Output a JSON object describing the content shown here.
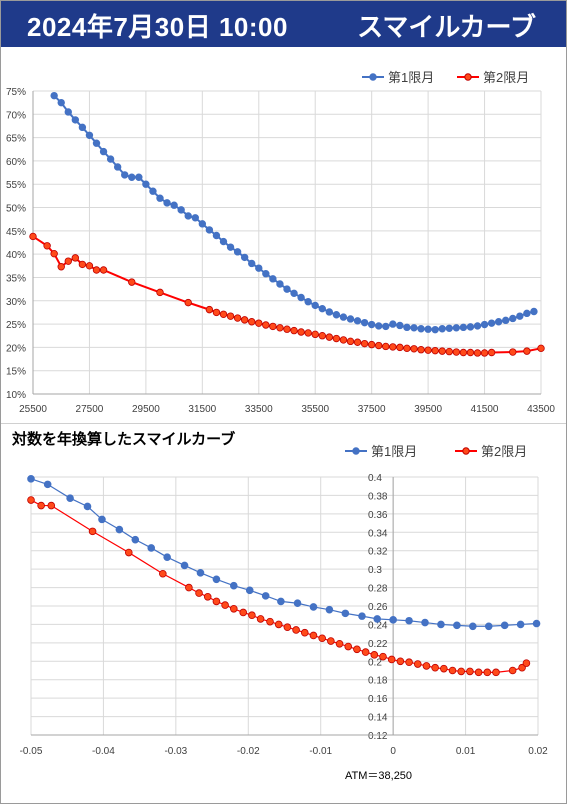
{
  "header": {
    "datetime": "2024年7月30日 10:00",
    "title": "スマイルカーブ",
    "background": "#1f3a8a"
  },
  "colors": {
    "series1": "#4472c4",
    "series2": "#ff0000",
    "marker2_fill": "#ff4a1a"
  },
  "chart_data": [
    {
      "type": "line",
      "title": "",
      "legend_placement": "top-right",
      "x_ticks": [
        "25500",
        "27500",
        "29500",
        "31500",
        "33500",
        "35500",
        "37500",
        "39500",
        "41500",
        "43500"
      ],
      "y_ticks": [
        "10%",
        "15%",
        "20%",
        "25%",
        "30%",
        "35%",
        "40%",
        "45%",
        "50%",
        "55%",
        "60%",
        "65%",
        "70%",
        "75%"
      ],
      "xlim": [
        25500,
        43500
      ],
      "ylim": [
        0.1,
        0.75
      ],
      "grid": true,
      "series": [
        {
          "name": "第1限月",
          "color": "#4472c4",
          "points": [
            [
              26250,
              0.74
            ],
            [
              26500,
              0.725
            ],
            [
              26750,
              0.705
            ],
            [
              27000,
              0.688
            ],
            [
              27250,
              0.672
            ],
            [
              27500,
              0.655
            ],
            [
              27750,
              0.638
            ],
            [
              28000,
              0.62
            ],
            [
              28250,
              0.604
            ],
            [
              28500,
              0.587
            ],
            [
              28750,
              0.57
            ],
            [
              29000,
              0.565
            ],
            [
              29250,
              0.565
            ],
            [
              29500,
              0.55
            ],
            [
              29750,
              0.535
            ],
            [
              30000,
              0.52
            ],
            [
              30250,
              0.51
            ],
            [
              30500,
              0.505
            ],
            [
              30750,
              0.495
            ],
            [
              31000,
              0.482
            ],
            [
              31250,
              0.478
            ],
            [
              31500,
              0.465
            ],
            [
              31750,
              0.452
            ],
            [
              32000,
              0.44
            ],
            [
              32250,
              0.427
            ],
            [
              32500,
              0.415
            ],
            [
              32750,
              0.405
            ],
            [
              33000,
              0.393
            ],
            [
              33250,
              0.38
            ],
            [
              33500,
              0.37
            ],
            [
              33750,
              0.358
            ],
            [
              34000,
              0.347
            ],
            [
              34250,
              0.336
            ],
            [
              34500,
              0.325
            ],
            [
              34750,
              0.316
            ],
            [
              35000,
              0.307
            ],
            [
              35250,
              0.298
            ],
            [
              35500,
              0.29
            ],
            [
              35750,
              0.283
            ],
            [
              36000,
              0.276
            ],
            [
              36250,
              0.27
            ],
            [
              36500,
              0.265
            ],
            [
              36750,
              0.261
            ],
            [
              37000,
              0.257
            ],
            [
              37250,
              0.253
            ],
            [
              37500,
              0.249
            ],
            [
              37750,
              0.246
            ],
            [
              38000,
              0.245
            ],
            [
              38250,
              0.25
            ],
            [
              38500,
              0.247
            ],
            [
              38750,
              0.243
            ],
            [
              39000,
              0.242
            ],
            [
              39250,
              0.24
            ],
            [
              39500,
              0.239
            ],
            [
              39750,
              0.238
            ],
            [
              40000,
              0.24
            ],
            [
              40250,
              0.241
            ],
            [
              40500,
              0.242
            ],
            [
              40750,
              0.243
            ],
            [
              41000,
              0.244
            ],
            [
              41250,
              0.246
            ],
            [
              41500,
              0.249
            ],
            [
              41750,
              0.252
            ],
            [
              42000,
              0.255
            ],
            [
              42250,
              0.258
            ],
            [
              42500,
              0.262
            ],
            [
              42750,
              0.267
            ],
            [
              43000,
              0.273
            ],
            [
              43250,
              0.277
            ]
          ]
        },
        {
          "name": "第2限月",
          "color": "#ff0000",
          "points": [
            [
              25500,
              0.438
            ],
            [
              26000,
              0.418
            ],
            [
              26250,
              0.401
            ],
            [
              26500,
              0.373
            ],
            [
              26750,
              0.385
            ],
            [
              27000,
              0.392
            ],
            [
              27250,
              0.378
            ],
            [
              27500,
              0.375
            ],
            [
              27750,
              0.366
            ],
            [
              28000,
              0.366
            ],
            [
              29000,
              0.34
            ],
            [
              30000,
              0.318
            ],
            [
              31000,
              0.296
            ],
            [
              31750,
              0.281
            ],
            [
              32000,
              0.275
            ],
            [
              32250,
              0.271
            ],
            [
              32500,
              0.267
            ],
            [
              32750,
              0.263
            ],
            [
              33000,
              0.259
            ],
            [
              33250,
              0.255
            ],
            [
              33500,
              0.252
            ],
            [
              33750,
              0.248
            ],
            [
              34000,
              0.245
            ],
            [
              34250,
              0.242
            ],
            [
              34500,
              0.239
            ],
            [
              34750,
              0.236
            ],
            [
              35000,
              0.233
            ],
            [
              35250,
              0.231
            ],
            [
              35500,
              0.228
            ],
            [
              35750,
              0.225
            ],
            [
              36000,
              0.222
            ],
            [
              36250,
              0.219
            ],
            [
              36500,
              0.216
            ],
            [
              36750,
              0.213
            ],
            [
              37000,
              0.211
            ],
            [
              37250,
              0.208
            ],
            [
              37500,
              0.206
            ],
            [
              37750,
              0.204
            ],
            [
              38000,
              0.202
            ],
            [
              38250,
              0.201
            ],
            [
              38500,
              0.2
            ],
            [
              38750,
              0.198
            ],
            [
              39000,
              0.197
            ],
            [
              39250,
              0.195
            ],
            [
              39500,
              0.194
            ],
            [
              39750,
              0.193
            ],
            [
              40000,
              0.192
            ],
            [
              40250,
              0.191
            ],
            [
              40500,
              0.19
            ],
            [
              40750,
              0.189
            ],
            [
              41000,
              0.189
            ],
            [
              41250,
              0.188
            ],
            [
              41500,
              0.188
            ],
            [
              41750,
              0.189
            ],
            [
              42500,
              0.19
            ],
            [
              43000,
              0.192
            ],
            [
              43500,
              0.198
            ]
          ]
        }
      ]
    },
    {
      "type": "line",
      "title": "対数を年換算したスマイルカーブ",
      "legend_placement": "top-right",
      "x_ticks": [
        "-0.05",
        "-0.04",
        "-0.03",
        "-0.02",
        "-0.01",
        "0",
        "0.01",
        "0.02"
      ],
      "y_ticks": [
        "0.12",
        "0.14",
        "0.16",
        "0.18",
        "0.2",
        "0.22",
        "0.24",
        "0.26",
        "0.28",
        "0.3",
        "0.32",
        "0.34",
        "0.36",
        "0.38",
        "0.4"
      ],
      "xlim": [
        -0.05,
        0.02
      ],
      "ylim": [
        0.12,
        0.4
      ],
      "annotation": "ATM＝38,250",
      "grid": true,
      "series": [
        {
          "name": "第1限月",
          "color": "#4472c4",
          "points": [
            [
              -0.05,
              0.398
            ],
            [
              -0.0477,
              0.392
            ],
            [
              -0.0446,
              0.377
            ],
            [
              -0.0422,
              0.368
            ],
            [
              -0.0402,
              0.354
            ],
            [
              -0.0378,
              0.343
            ],
            [
              -0.0356,
              0.332
            ],
            [
              -0.0334,
              0.323
            ],
            [
              -0.0312,
              0.313
            ],
            [
              -0.0288,
              0.304
            ],
            [
              -0.0266,
              0.296
            ],
            [
              -0.0244,
              0.289
            ],
            [
              -0.022,
              0.282
            ],
            [
              -0.0198,
              0.277
            ],
            [
              -0.0176,
              0.271
            ],
            [
              -0.0155,
              0.265
            ],
            [
              -0.0132,
              0.263
            ],
            [
              -0.011,
              0.259
            ],
            [
              -0.0088,
              0.256
            ],
            [
              -0.0066,
              0.252
            ],
            [
              -0.0043,
              0.249
            ],
            [
              -0.0022,
              0.246
            ],
            [
              0,
              0.245
            ],
            [
              0.0022,
              0.244
            ],
            [
              0.0044,
              0.242
            ],
            [
              0.0066,
              0.24
            ],
            [
              0.0088,
              0.239
            ],
            [
              0.011,
              0.238
            ],
            [
              0.0132,
              0.238
            ],
            [
              0.0154,
              0.239
            ],
            [
              0.0176,
              0.24
            ],
            [
              0.0198,
              0.241
            ]
          ]
        },
        {
          "name": "第2限月",
          "color": "#ff0000",
          "points": [
            [
              -0.05,
              0.375
            ],
            [
              -0.0486,
              0.369
            ],
            [
              -0.0472,
              0.369
            ],
            [
              -0.0415,
              0.341
            ],
            [
              -0.0365,
              0.318
            ],
            [
              -0.0318,
              0.295
            ],
            [
              -0.0282,
              0.28
            ],
            [
              -0.0268,
              0.274
            ],
            [
              -0.0256,
              0.27
            ],
            [
              -0.0244,
              0.265
            ],
            [
              -0.0232,
              0.261
            ],
            [
              -0.022,
              0.257
            ],
            [
              -0.0207,
              0.253
            ],
            [
              -0.0195,
              0.25
            ],
            [
              -0.0183,
              0.246
            ],
            [
              -0.017,
              0.243
            ],
            [
              -0.0158,
              0.24
            ],
            [
              -0.0146,
              0.237
            ],
            [
              -0.0134,
              0.234
            ],
            [
              -0.0122,
              0.231
            ],
            [
              -0.011,
              0.228
            ],
            [
              -0.0098,
              0.225
            ],
            [
              -0.0086,
              0.222
            ],
            [
              -0.0074,
              0.219
            ],
            [
              -0.0062,
              0.216
            ],
            [
              -0.005,
              0.213
            ],
            [
              -0.0038,
              0.21
            ],
            [
              -0.0026,
              0.207
            ],
            [
              -0.0014,
              0.205
            ],
            [
              -0.0002,
              0.202
            ],
            [
              0.001,
              0.2
            ],
            [
              0.0022,
              0.199
            ],
            [
              0.0034,
              0.197
            ],
            [
              0.0046,
              0.195
            ],
            [
              0.0058,
              0.193
            ],
            [
              0.007,
              0.192
            ],
            [
              0.0082,
              0.19
            ],
            [
              0.0094,
              0.189
            ],
            [
              0.0106,
              0.189
            ],
            [
              0.0118,
              0.188
            ],
            [
              0.013,
              0.188
            ],
            [
              0.0142,
              0.188
            ],
            [
              0.0165,
              0.19
            ],
            [
              0.0178,
              0.193
            ],
            [
              0.0184,
              0.198
            ]
          ]
        }
      ]
    }
  ]
}
